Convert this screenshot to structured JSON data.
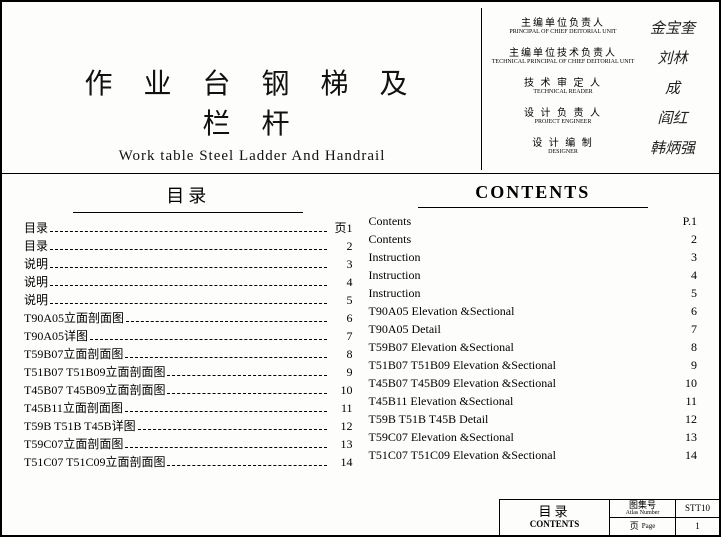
{
  "title": {
    "zh": "作 业 台 钢 梯 及 栏 杆",
    "en": "Work table  Steel Ladder And Handrail"
  },
  "signatures": [
    {
      "zh": "主编单位负责人",
      "en": "PRINCIPAL OF CHIEF DEITORIAL UNIT",
      "sign": "金宝奎"
    },
    {
      "zh": "主编单位技术负责人",
      "en": "TECHNICAL PRINCIPAL OF CHIEF DEITORIAL UNIT",
      "sign": "刘林"
    },
    {
      "zh": "技 术 审 定 人",
      "en": "TECHNICAL READER",
      "sign": "成"
    },
    {
      "zh": "设 计 负 责 人",
      "en": "PROJECT ENGINEER",
      "sign": "阎红"
    },
    {
      "zh": "设 计 编 制",
      "en": "DESIGNER",
      "sign": "韩炳强"
    }
  ],
  "toc": {
    "heading_zh": "目录",
    "heading_en": "CONTENTS",
    "zh_items": [
      {
        "label": "目录",
        "page": "页1"
      },
      {
        "label": "目录",
        "page": "2"
      },
      {
        "label": "说明",
        "page": "3"
      },
      {
        "label": "说明",
        "page": "4"
      },
      {
        "label": "说明",
        "page": "5"
      },
      {
        "label": "T90A05立面剖面图",
        "page": "6"
      },
      {
        "label": "T90A05详图",
        "page": "7"
      },
      {
        "label": "T59B07立面剖面图",
        "page": "8"
      },
      {
        "label": "T51B07 T51B09立面剖面图",
        "page": "9"
      },
      {
        "label": "T45B07 T45B09立面剖面图",
        "page": "10"
      },
      {
        "label": "T45B11立面剖面图",
        "page": "11"
      },
      {
        "label": "T59B T51B T45B详图",
        "page": "12"
      },
      {
        "label": "T59C07立面剖面图",
        "page": "13"
      },
      {
        "label": "T51C07 T51C09立面剖面图",
        "page": "14"
      }
    ],
    "en_items": [
      {
        "label": "Contents",
        "page": "P.1"
      },
      {
        "label": "Contents",
        "page": "2"
      },
      {
        "label": "Instruction",
        "page": "3"
      },
      {
        "label": "Instruction",
        "page": "4"
      },
      {
        "label": "Instruction",
        "page": "5"
      },
      {
        "label": "T90A05 Elevation &Sectional",
        "page": "6"
      },
      {
        "label": "T90A05 Detail",
        "page": "7"
      },
      {
        "label": "T59B07 Elevation &Sectional",
        "page": "8"
      },
      {
        "label": "T51B07 T51B09 Elevation &Sectional",
        "page": "9"
      },
      {
        "label": "T45B07 T45B09 Elevation &Sectional",
        "page": "10"
      },
      {
        "label": "T45B11 Elevation &Sectional",
        "page": "11"
      },
      {
        "label": "T59B T51B T45B Detail",
        "page": "12"
      },
      {
        "label": "T59C07 Elevation &Sectional",
        "page": "13"
      },
      {
        "label": "T51C07 T51C09 Elevation &Sectional",
        "page": "14"
      }
    ]
  },
  "titleblock": {
    "zh": "目录",
    "en": "CONTENTS",
    "atlas_zh": "图集号",
    "atlas_en": "Atlas Number",
    "atlas_val": "STT10",
    "page_zh": "页",
    "page_en": "Page",
    "page_val": "1"
  }
}
